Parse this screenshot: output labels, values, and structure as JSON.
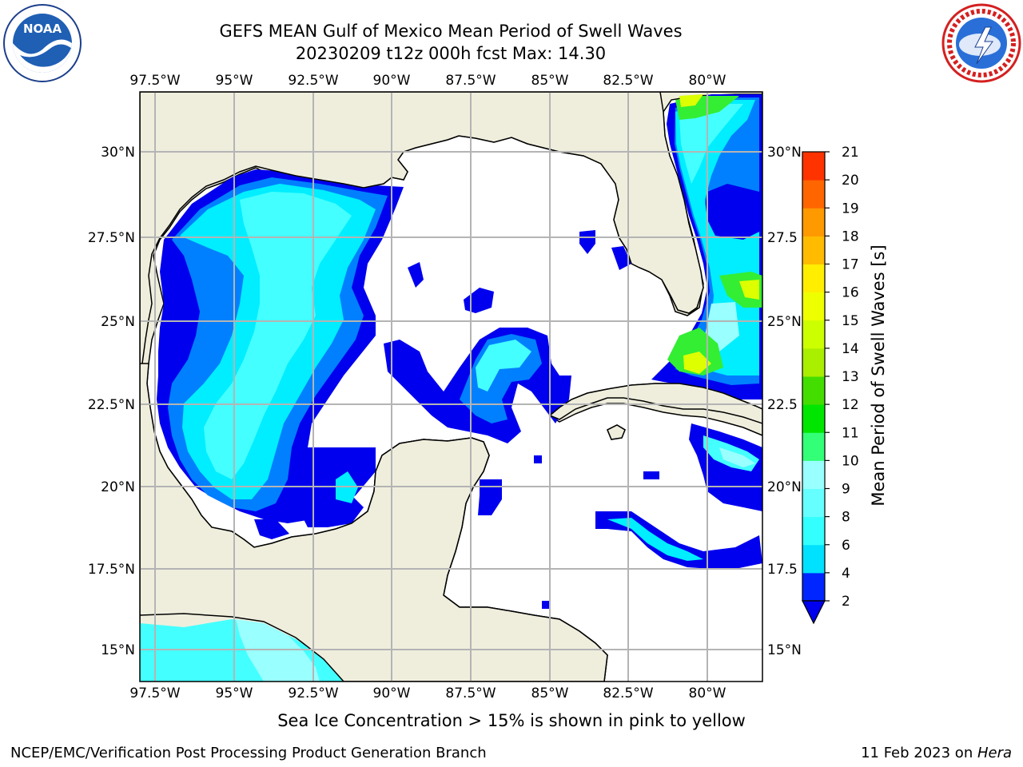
{
  "title_line1": "GEFS MEAN Gulf of Mexico Mean Period of Swell Waves",
  "title_line2": "20230209 t12z 000h fcst   Max: 14.30",
  "lon_labels": [
    "97.5°W",
    "95°W",
    "92.5°W",
    "90°W",
    "87.5°W",
    "85°W",
    "82.5°W",
    "80°W"
  ],
  "lat_labels_left": [
    "30°N",
    "27.5°N",
    "25°N",
    "22.5°N",
    "20°N",
    "17.5°N",
    "15°N"
  ],
  "lat_labels_right": [
    "30°N",
    "27.5",
    "25°N",
    "22.5",
    "20°N",
    "17.5",
    "15°N"
  ],
  "colorbar": {
    "label": "Mean Period of Swell Waves [s]",
    "ticks": [
      "2",
      "4",
      "6",
      "8",
      "9",
      "10",
      "11",
      "12",
      "13",
      "14",
      "15",
      "16",
      "17",
      "18",
      "19",
      "20",
      "21"
    ],
    "colors": [
      "#0026ff",
      "#00e0ff",
      "#33ffff",
      "#66ffff",
      "#99ffff",
      "#33ff77",
      "#00e600",
      "#44dd00",
      "#aaee00",
      "#ccff00",
      "#eeff00",
      "#ffee00",
      "#ffbb00",
      "#ff9900",
      "#ff6600",
      "#ff3300",
      "#ff0000"
    ],
    "extend_color": "#0000ee"
  },
  "colors": {
    "land": "#efeedd",
    "ocean": "#ffffff",
    "grid": "#b4b4b4",
    "swell_blue": "#0000ee",
    "swell_mid": "#0080ff",
    "swell_cyan": "#00eeff",
    "swell_light": "#44ffff",
    "swell_pale": "#99ffff",
    "swell_green": "#33ee33",
    "swell_yellow": "#ddff00"
  },
  "note": "Sea Ice Concentration > 15% is shown in pink to yellow",
  "footer_left": "NCEP/EMC/Verification Post Processing Product Generation Branch",
  "footer_right_prefix": "11 Feb 2023 on ",
  "footer_right_machine": "Hera",
  "logos": {
    "left": "noaa-logo",
    "right": "nws-logo"
  }
}
